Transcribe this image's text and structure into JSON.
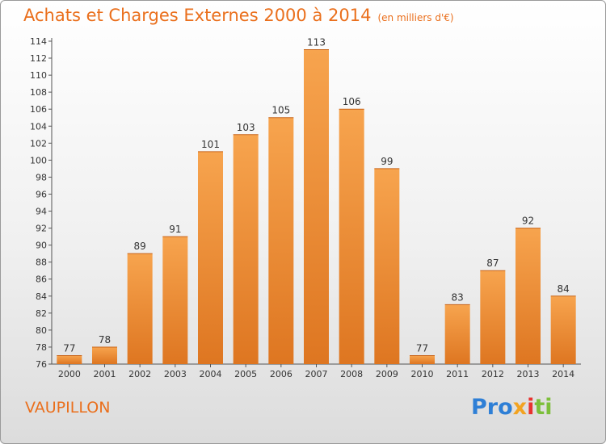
{
  "header": {
    "title": "Achats et Charges Externes 2000 à 2014",
    "subtitle": "(en milliers d'€)"
  },
  "footer": {
    "place": "VAUPILLON",
    "logo": {
      "p1": "Pro",
      "p2": "x",
      "p3": "i",
      "p4": "ti"
    }
  },
  "colors": {
    "accent": "#ea6f1c",
    "bar_light": "#f7a44e",
    "bar_dark": "#de7621"
  },
  "chart_data": {
    "type": "bar",
    "title": "Achats et Charges Externes 2000 à 2014",
    "subtitle": "(en milliers d'€)",
    "xlabel": "",
    "ylabel": "",
    "categories": [
      "2000",
      "2001",
      "2002",
      "2003",
      "2004",
      "2005",
      "2006",
      "2007",
      "2008",
      "2009",
      "2010",
      "2011",
      "2012",
      "2013",
      "2014"
    ],
    "values": [
      77,
      78,
      89,
      91,
      101,
      103,
      105,
      113,
      106,
      99,
      77,
      83,
      87,
      92,
      84
    ],
    "ylim": [
      76,
      114
    ],
    "yticks": [
      76,
      78,
      80,
      82,
      84,
      86,
      88,
      90,
      92,
      94,
      96,
      98,
      100,
      102,
      104,
      106,
      108,
      110,
      112,
      114
    ],
    "grid": false,
    "legend": "none"
  }
}
